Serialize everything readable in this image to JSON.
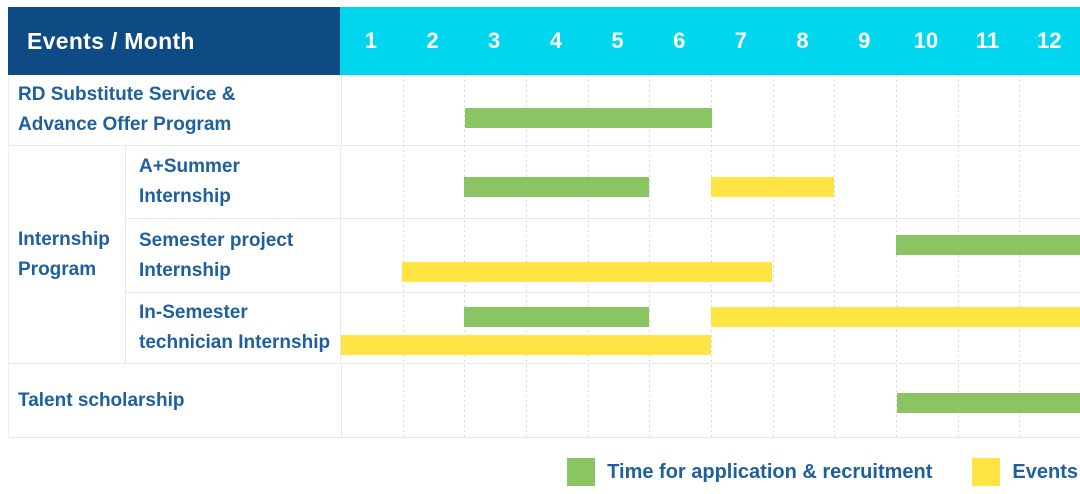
{
  "header": {
    "title": "Events / Month",
    "months": [
      "1",
      "2",
      "3",
      "4",
      "5",
      "6",
      "7",
      "8",
      "9",
      "10",
      "11",
      "12"
    ]
  },
  "rows": {
    "r1": {
      "line1": "RD Substitute Service &",
      "line2": "Advance Offer Program"
    },
    "r2": {
      "line1": "A+Summer",
      "line2": "Internship"
    },
    "r3": {
      "line1": "Semester project",
      "line2": "Internship"
    },
    "r4": {
      "line1": "In-Semester",
      "line2": "technician Internship"
    },
    "r5": {
      "line1": "Talent scholarship"
    }
  },
  "group": {
    "line1": "Internship",
    "line2": "Program"
  },
  "legend": {
    "application": "Time for application & recruitment",
    "events": "Events"
  },
  "colors": {
    "header_bg": "#0e4b84",
    "months_bg": "#00d6ee",
    "green": "#8bc563",
    "yellow": "#ffe443",
    "label_text": "#1d5f9f",
    "grid": "#e8e8e8"
  },
  "chart_data": {
    "type": "bar",
    "variant": "gantt",
    "title": "Events / Month",
    "x_axis": {
      "unit": "month",
      "ticks": [
        1,
        2,
        3,
        4,
        5,
        6,
        7,
        8,
        9,
        10,
        11,
        12
      ],
      "range": [
        1,
        12
      ]
    },
    "legend": [
      {
        "name": "Time for application & recruitment",
        "color": "#8bc563"
      },
      {
        "name": "Events",
        "color": "#ffe443"
      }
    ],
    "rows": [
      {
        "event": "RD Substitute Service & Advance Offer Program",
        "group": null,
        "bars": [
          {
            "series": "Time for application & recruitment",
            "color": "green",
            "start_month": 3,
            "end_month": 6,
            "lane": "single"
          }
        ]
      },
      {
        "event": "A+Summer Internship",
        "group": "Internship Program",
        "bars": [
          {
            "series": "Time for application & recruitment",
            "color": "green",
            "start_month": 3,
            "end_month": 5,
            "lane": "single"
          },
          {
            "series": "Events",
            "color": "yellow",
            "start_month": 7,
            "end_month": 8,
            "lane": "single"
          }
        ]
      },
      {
        "event": "Semester project Internship",
        "group": "Internship Program",
        "bars": [
          {
            "series": "Time for application & recruitment",
            "color": "green",
            "start_month": 10,
            "end_month": 12,
            "lane": "top"
          },
          {
            "series": "Events",
            "color": "yellow",
            "start_month": 2,
            "end_month": 7,
            "lane": "bottom"
          }
        ]
      },
      {
        "event": "In-Semester technician Internship",
        "group": "Internship Program",
        "bars": [
          {
            "series": "Time for application & recruitment",
            "color": "green",
            "start_month": 3,
            "end_month": 5,
            "lane": "top"
          },
          {
            "series": "Events",
            "color": "yellow",
            "start_month": 7,
            "end_month": 12,
            "lane": "top"
          },
          {
            "series": "Events",
            "color": "yellow",
            "start_month": 1,
            "end_month": 6,
            "lane": "bottom"
          }
        ]
      },
      {
        "event": "Talent scholarship",
        "group": null,
        "bars": [
          {
            "series": "Time for application & recruitment",
            "color": "green",
            "start_month": 10,
            "end_month": 12,
            "lane": "single"
          }
        ]
      }
    ]
  }
}
